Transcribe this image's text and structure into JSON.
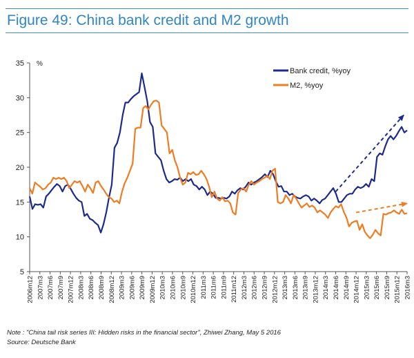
{
  "title": "Figure 49: China bank credit and M2 growth",
  "note": "Note : \"China tail risk series III: Hidden risks in the financial sector\", Zhiwei Zhang, May 5 2016",
  "source": "Source: Deutsche Bank",
  "chart_data": {
    "type": "line",
    "ylabel": "%",
    "ylim": [
      5,
      35
    ],
    "yticks": [
      5,
      10,
      15,
      20,
      25,
      30,
      35
    ],
    "x_start": "2006m12",
    "x_end": "2016m3",
    "x_tick_labels": [
      "2006m12",
      "2007m3",
      "2007m6",
      "2007m9",
      "2007m12",
      "2008m3",
      "2008m6",
      "2008m9",
      "2008m12",
      "2009m3",
      "2009m6",
      "2009m9",
      "2009m12",
      "2010m3",
      "2010m6",
      "2010m9",
      "2010m12",
      "2011m3",
      "2011m6",
      "2011m9",
      "2011m12",
      "2012m3",
      "2012m6",
      "2012m9",
      "2012m12",
      "2013m3",
      "2013m6",
      "2013m9",
      "2013m12",
      "2014m3",
      "2014m6",
      "2014m9",
      "2014m12",
      "2015m3",
      "2015m6",
      "2015m9",
      "2015m12",
      "2016m3"
    ],
    "grid": false,
    "legend_position": "top-right",
    "series": [
      {
        "name": "Bank credit, %yoy",
        "color": "#1c2a8c",
        "values": [
          15.8,
          14.0,
          14.7,
          14.6,
          14.7,
          14.2,
          15.8,
          16.2,
          16.7,
          17.2,
          17.6,
          17.3,
          16.5,
          17.3,
          17.5,
          16.9,
          16.2,
          15.6,
          15.2,
          15.0,
          13.0,
          13.3,
          12.6,
          12.4,
          12.0,
          11.7,
          10.6,
          11.8,
          13.5,
          15.6,
          17.5,
          22.8,
          23.5,
          25.0,
          27.5,
          29.3,
          29.3,
          29.8,
          30.2,
          30.5,
          30.8,
          33.5,
          31.5,
          29.5,
          26.5,
          25.8,
          22.0,
          21.5,
          21.0,
          19.5,
          18.3,
          17.8,
          18.0,
          18.3,
          18.2,
          18.5,
          18.0,
          18.3,
          18.0,
          18.3,
          17.5,
          17.3,
          16.8,
          17.2,
          16.8,
          16.0,
          16.5,
          16.2,
          15.6,
          15.6,
          15.5,
          15.6,
          15.5,
          15.8,
          16.5,
          16.2,
          16.7,
          17.0,
          16.8,
          17.2,
          17.8,
          17.5,
          17.8,
          18.0,
          18.3,
          18.6,
          19.0,
          18.6,
          19.5,
          19.0,
          18.0,
          17.2,
          17.3,
          16.5,
          16.5,
          16.0,
          16.2,
          15.8,
          15.6,
          15.5,
          15.8,
          16.0,
          15.8,
          15.2,
          15.5,
          15.2,
          14.8,
          15.3,
          15.5,
          16.0,
          16.5,
          17.0,
          16.2,
          15.0,
          15.0,
          15.5,
          16.0,
          16.2,
          16.2,
          16.8,
          17.2,
          17.0,
          17.2,
          17.6,
          17.2,
          18.3,
          18.0,
          21.5,
          22.0,
          21.8,
          23.0,
          24.0,
          24.5,
          24.0,
          24.5,
          25.2,
          25.8,
          25.0,
          25.3
        ]
      },
      {
        "name": "M2, %yoy",
        "color": "#f07c22",
        "values": [
          17.0,
          16.2,
          17.8,
          17.5,
          17.2,
          16.8,
          17.0,
          17.5,
          17.8,
          18.5,
          18.3,
          18.5,
          18.3,
          18.5,
          18.0,
          17.0,
          17.5,
          18.0,
          17.8,
          18.0,
          17.3,
          16.5,
          17.5,
          17.0,
          16.3,
          17.8,
          18.0,
          17.3,
          16.8,
          16.2,
          15.7,
          15.5,
          15.0,
          15.2,
          14.8,
          16.5,
          17.7,
          18.5,
          19.5,
          20.5,
          25.5,
          25.7,
          25.7,
          28.5,
          28.8,
          28.3,
          29.0,
          29.5,
          29.6,
          29.3,
          26.0,
          25.5,
          25.0,
          22.0,
          22.5,
          21.0,
          20.0,
          18.5,
          17.5,
          17.8,
          19.2,
          19.0,
          19.3,
          18.9,
          19.0,
          19.5,
          19.0,
          18.3,
          17.2,
          15.7,
          16.5,
          15.5,
          15.2,
          15.7,
          15.1,
          15.2,
          14.8,
          13.5,
          13.2,
          16.3,
          16.8,
          17.0,
          16.5,
          17.5,
          18.0,
          17.5,
          17.8,
          18.0,
          18.3,
          18.5,
          18.8,
          18.3,
          19.5,
          19.8,
          15.0,
          14.8,
          15.0,
          16.0,
          15.5,
          14.8,
          16.0,
          15.5,
          14.8,
          14.2,
          14.5,
          14.8,
          14.3,
          14.5,
          14.2,
          13.5,
          13.8,
          13.5,
          13.2,
          12.7,
          13.5,
          14.0,
          14.4,
          14.2,
          14.7,
          13.6,
          12.8,
          11.5,
          12.0,
          12.2,
          12.3,
          11.0,
          11.8,
          10.7,
          10.2,
          9.8,
          10.3,
          11.0,
          10.5,
          10.2,
          13.3,
          13.2,
          13.4,
          13.5,
          13.8,
          13.5,
          13.3,
          13.9,
          13.3,
          13.4
        ]
      }
    ],
    "annotations": [
      {
        "type": "dashed-arrow",
        "color": "#1c2a8c",
        "from": {
          "x": "2014m6",
          "y": 16.5
        },
        "to": {
          "x": "2016m2",
          "y": 27.5
        }
      },
      {
        "type": "dashed-arrow",
        "color": "#f07c22",
        "from": {
          "x": "2014m12",
          "y": 13.5
        },
        "to": {
          "x": "2016m3",
          "y": 14.8
        }
      }
    ]
  }
}
